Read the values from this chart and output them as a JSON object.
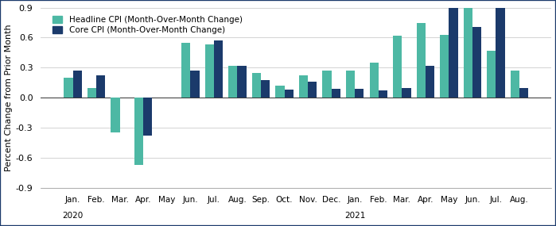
{
  "months": [
    "Jan.",
    "Feb.",
    "Mar.",
    "Apr.",
    "May",
    "Jun.",
    "Jul.",
    "Aug.",
    "Sep.",
    "Oct.",
    "Nov.",
    "Dec.",
    "Jan.",
    "Feb.",
    "Mar.",
    "Apr.",
    "May",
    "Jun.",
    "Jul.",
    "Aug."
  ],
  "headline_cpi": [
    0.2,
    0.1,
    -0.35,
    -0.67,
    0.0,
    0.55,
    0.53,
    0.32,
    0.25,
    0.12,
    0.22,
    0.27,
    0.27,
    0.35,
    0.62,
    0.75,
    0.63,
    0.9,
    0.47,
    0.27
  ],
  "core_cpi": [
    0.27,
    0.22,
    0.0,
    -0.38,
    0.0,
    0.27,
    0.57,
    0.32,
    0.18,
    0.08,
    0.16,
    0.09,
    0.09,
    0.07,
    0.1,
    0.32,
    0.91,
    0.71,
    0.9,
    0.1
  ],
  "headline_color": "#4DB8A4",
  "core_color": "#1B3A6B",
  "ylabel": "Percent Change from Prior Month",
  "ylim": [
    -0.9,
    0.9
  ],
  "yticks": [
    -0.9,
    -0.6,
    -0.3,
    0.0,
    0.3,
    0.6,
    0.9
  ],
  "legend_headline": "Headline CPI (Month-Over-Month Change)",
  "legend_core": "Core CPI (Month-Over-Month Change)",
  "background_color": "#FFFFFF",
  "grid_color": "#CCCCCC",
  "year_2020_idx": 0,
  "year_2021_idx": 12
}
